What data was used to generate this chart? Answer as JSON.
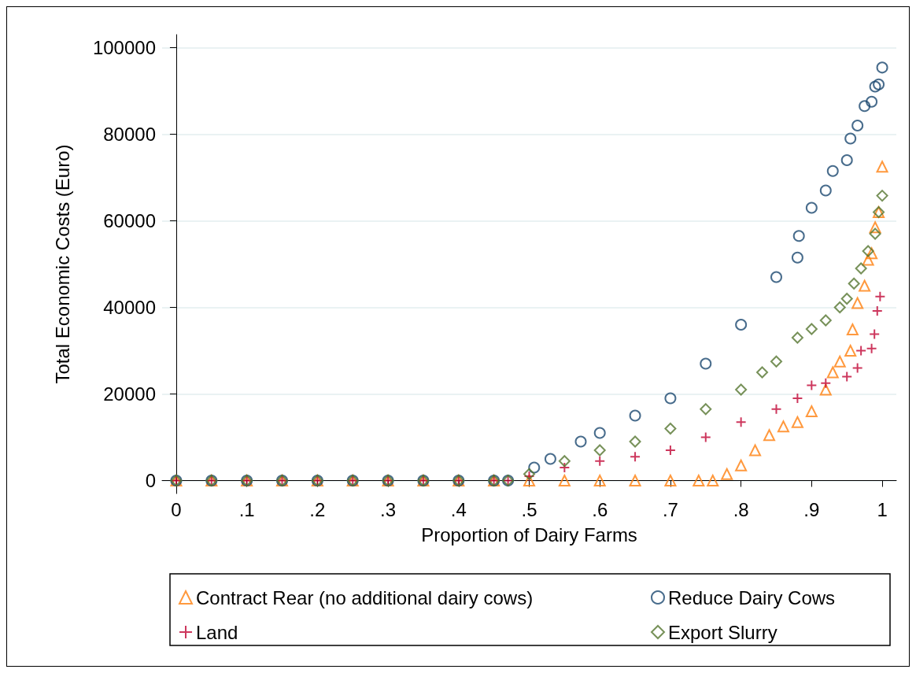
{
  "chart_data": {
    "type": "scatter",
    "xlabel": "Proportion of Dairy Farms",
    "ylabel": "Total Economic Costs (Euro)",
    "xlim": [
      -0.02,
      1.02
    ],
    "ylim": [
      -3000,
      103000
    ],
    "xticks": [
      0,
      {
        "value": 0.1,
        "label": ".1"
      },
      {
        "value": 0.2,
        "label": ".2"
      },
      {
        "value": 0.3,
        "label": ".3"
      },
      {
        "value": 0.4,
        "label": ".4"
      },
      {
        "value": 0.5,
        "label": ".5"
      },
      {
        "value": 0.6,
        "label": ".6"
      },
      {
        "value": 0.7,
        "label": ".7"
      },
      {
        "value": 0.8,
        "label": ".8"
      },
      {
        "value": 0.9,
        "label": ".9"
      },
      1
    ],
    "yticks": [
      0,
      20000,
      40000,
      60000,
      80000,
      100000
    ],
    "grid": "y",
    "legend": "bottom",
    "series": [
      {
        "name": "Contract Rear (no additional dairy cows)",
        "color": "#ff7f0e",
        "marker": "triangle",
        "x": [
          0,
          0.05,
          0.1,
          0.15,
          0.2,
          0.25,
          0.3,
          0.35,
          0.4,
          0.45,
          0.5,
          0.55,
          0.6,
          0.65,
          0.7,
          0.74,
          0.76,
          0.78,
          0.8,
          0.82,
          0.84,
          0.86,
          0.88,
          0.9,
          0.92,
          0.93,
          0.94,
          0.955,
          0.958,
          0.965,
          0.975,
          0.98,
          0.985,
          0.99,
          0.995,
          1.0
        ],
        "values": [
          0,
          0,
          0,
          0,
          0,
          0,
          0,
          0,
          0,
          0,
          0,
          0,
          0,
          0,
          0,
          0,
          0,
          1500,
          3500,
          7000,
          10500,
          12500,
          13500,
          16000,
          21000,
          25000,
          27500,
          30000,
          34900,
          41000,
          45000,
          51000,
          52500,
          58500,
          62000,
          72500
        ]
      },
      {
        "name": "Land",
        "color": "#c10534",
        "marker": "cross",
        "x": [
          0,
          0.05,
          0.1,
          0.15,
          0.2,
          0.25,
          0.3,
          0.35,
          0.4,
          0.45,
          0.47,
          0.5,
          0.55,
          0.6,
          0.65,
          0.7,
          0.75,
          0.8,
          0.85,
          0.88,
          0.9,
          0.92,
          0.95,
          0.965,
          0.97,
          0.985,
          0.989,
          0.993,
          0.997
        ],
        "values": [
          0,
          0,
          0,
          0,
          0,
          0,
          0,
          0,
          0,
          0,
          0,
          1000,
          3000,
          4500,
          5500,
          7000,
          10000,
          13500,
          16500,
          19000,
          22000,
          22500,
          24000,
          26000,
          30000,
          30500,
          33800,
          39200,
          42500
        ]
      },
      {
        "name": "Reduce Dairy Cows",
        "color": "#1a476f",
        "marker": "circle",
        "x": [
          0,
          0.05,
          0.1,
          0.15,
          0.2,
          0.25,
          0.3,
          0.35,
          0.4,
          0.45,
          0.47,
          0.507,
          0.53,
          0.573,
          0.6,
          0.65,
          0.7,
          0.75,
          0.8,
          0.85,
          0.88,
          0.882,
          0.9,
          0.92,
          0.93,
          0.95,
          0.955,
          0.965,
          0.975,
          0.985,
          0.99,
          0.995,
          1.0
        ],
        "values": [
          0,
          0,
          0,
          0,
          0,
          0,
          0,
          0,
          0,
          0,
          0,
          3000,
          5000,
          9000,
          11000,
          15000,
          19000,
          27000,
          36000,
          47000,
          51500,
          56500,
          63000,
          67000,
          71500,
          74000,
          79000,
          82000,
          86500,
          87500,
          91000,
          91500,
          95400
        ]
      },
      {
        "name": "Export Slurry",
        "color": "#55752f",
        "marker": "diamond",
        "x": [
          0,
          0.05,
          0.1,
          0.15,
          0.2,
          0.25,
          0.3,
          0.35,
          0.4,
          0.45,
          0.47,
          0.5,
          0.55,
          0.6,
          0.65,
          0.7,
          0.75,
          0.8,
          0.83,
          0.85,
          0.88,
          0.9,
          0.92,
          0.94,
          0.95,
          0.96,
          0.97,
          0.98,
          0.99,
          0.995,
          1.0
        ],
        "values": [
          0,
          0,
          0,
          0,
          0,
          0,
          0,
          0,
          0,
          0,
          0,
          1500,
          4500,
          7000,
          9000,
          12000,
          16500,
          21000,
          25000,
          27500,
          33000,
          35000,
          37000,
          40000,
          42000,
          45500,
          49000,
          53000,
          57000,
          62000,
          65800
        ]
      }
    ]
  }
}
